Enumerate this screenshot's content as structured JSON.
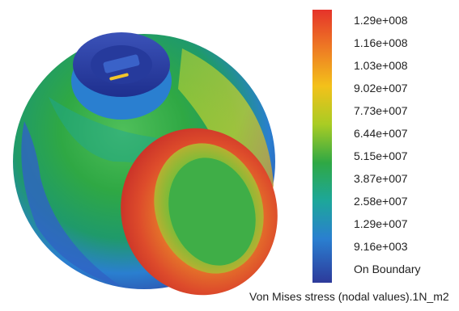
{
  "legend": {
    "values": [
      "1.29e+008",
      "1.16e+008",
      "1.03e+008",
      "9.02e+007",
      "7.73e+007",
      "6.44e+007",
      "5.15e+007",
      "3.87e+007",
      "2.58e+007",
      "1.29e+007",
      "9.16e+003",
      "On Boundary"
    ],
    "colors_top_to_bottom": [
      "#e5332a",
      "#ee7a24",
      "#f3c11a",
      "#a9cc24",
      "#2fa844",
      "#1da79a",
      "#2a7fd0",
      "#2d3a9b"
    ],
    "caption": "Von Mises stress (nodal values).1N_m2"
  },
  "model": {
    "shape": "sphere-with-bore-and-neck",
    "icon_name": "stress-model-render"
  }
}
